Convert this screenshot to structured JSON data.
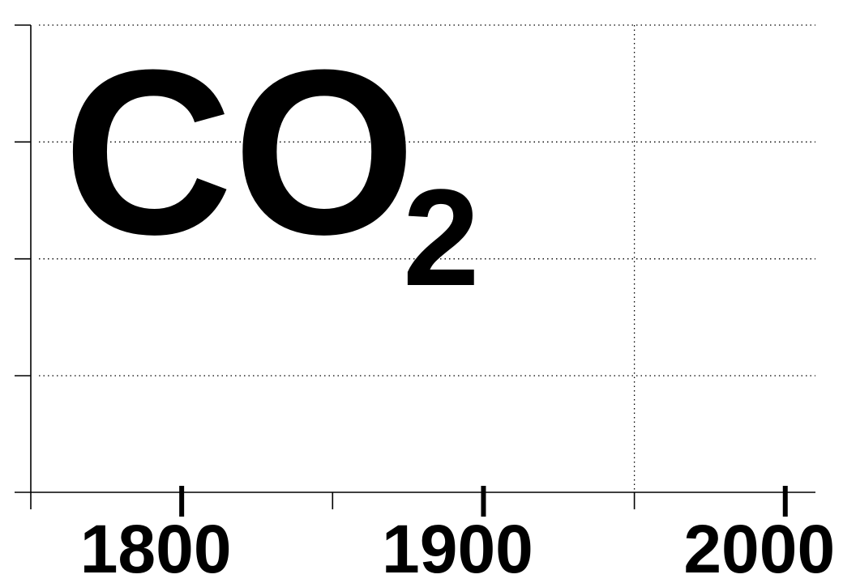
{
  "chart_data": {
    "type": "line",
    "title": "CO",
    "title_subscript": "2",
    "xlabel": "",
    "ylabel": "",
    "x_ticks_labeled": [
      1800,
      1900,
      2000
    ],
    "x_ticks_minor": [
      1750,
      1850,
      1950
    ],
    "xlim": [
      1750,
      2010
    ],
    "y_tick_count": 5,
    "grid": "dotted",
    "vertical_grid_at": 1950,
    "series": []
  }
}
